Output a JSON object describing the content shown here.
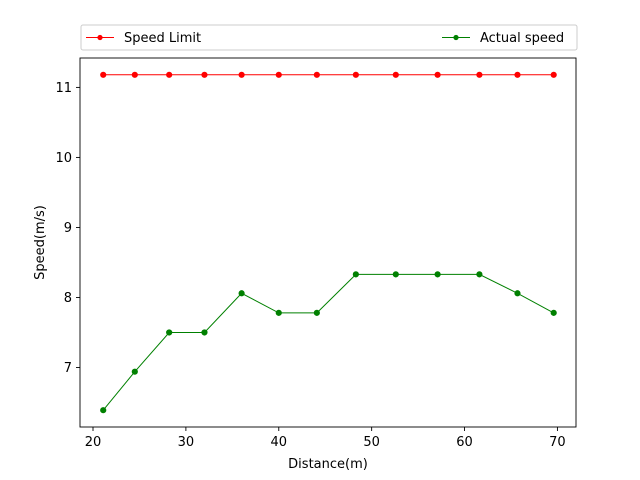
{
  "chart_data": {
    "type": "line",
    "xlabel": "Distance(m)",
    "ylabel": "Speed(m/s)",
    "xlim": [
      18.6,
      72.0
    ],
    "ylim": [
      6.15,
      11.42
    ],
    "x_ticks": [
      20,
      30,
      40,
      50,
      60,
      70
    ],
    "y_ticks": [
      7,
      8,
      9,
      10,
      11
    ],
    "grid": false,
    "legend_position": "top, above plot, two columns",
    "series": [
      {
        "name": "Speed Limit",
        "color": "#ff0000",
        "marker": "circle",
        "x": [
          21.1,
          24.5,
          28.2,
          32.0,
          36.0,
          40.0,
          44.1,
          48.3,
          52.6,
          57.1,
          61.6,
          65.7,
          69.6
        ],
        "y": [
          11.18,
          11.18,
          11.18,
          11.18,
          11.18,
          11.18,
          11.18,
          11.18,
          11.18,
          11.18,
          11.18,
          11.18,
          11.18
        ]
      },
      {
        "name": "Actual speed",
        "color": "#008000",
        "marker": "circle",
        "x": [
          21.1,
          24.5,
          28.2,
          32.0,
          36.0,
          40.0,
          44.1,
          48.3,
          52.6,
          57.1,
          61.6,
          65.7,
          69.6
        ],
        "y": [
          6.39,
          6.94,
          7.5,
          7.5,
          8.06,
          7.78,
          7.78,
          8.33,
          8.33,
          8.33,
          8.33,
          8.06,
          7.78
        ]
      }
    ]
  }
}
